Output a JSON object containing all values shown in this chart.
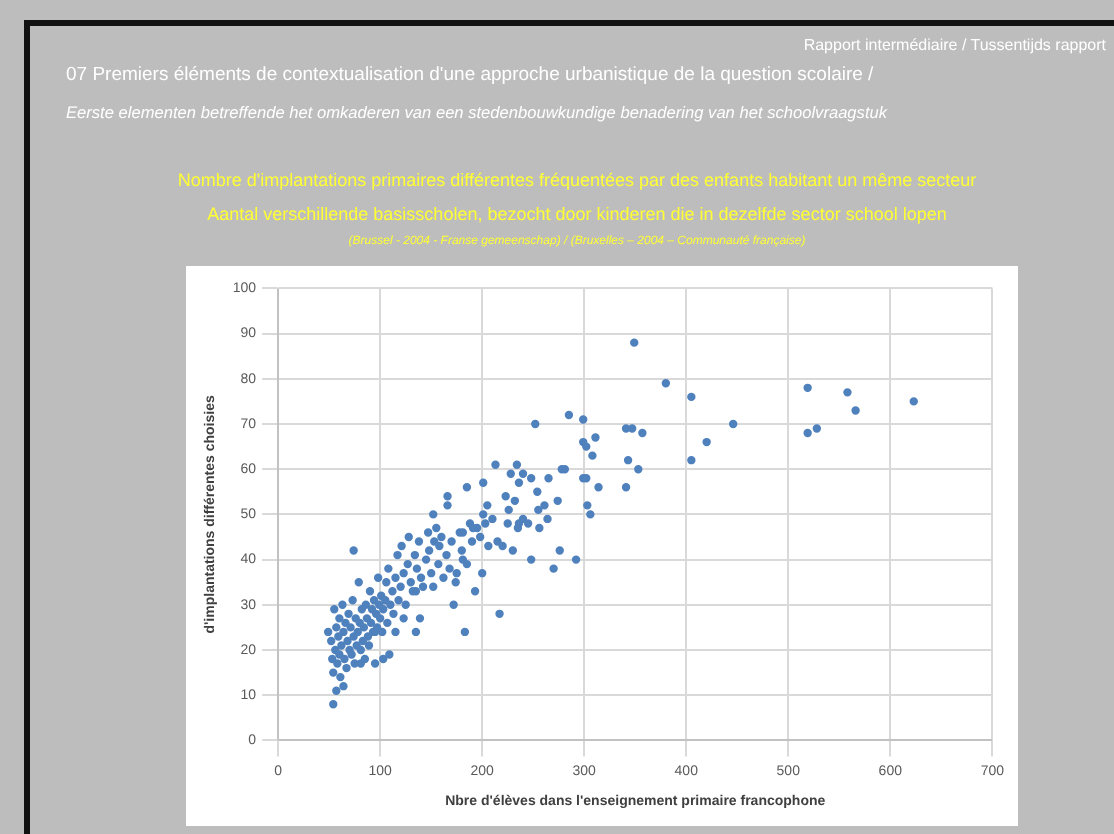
{
  "chart_data": {
    "type": "scatter",
    "title": "Nombre d'implantations primaires différentes fréquentées par des enfants  habitant un même secteur",
    "subtitle": "Aantal verschillende basisscholen, bezocht door kinderen die in dezelfde sector school lopen",
    "annotations": [
      "Rapport intermédiaire / Tussentijds rapport",
      "07  Premiers éléments de contextualisation d'une approche urbanistique de la question scolaire /",
      "Eerste elementen betreffende het omkaderen van een stedenbouwkundige benadering van het schoolvraagstuk",
      "(Brussel - 2004 - Franse gemeenschap) / (Bruxelles – 2004 – Communauté française)"
    ],
    "xlabel": "Nbre d'élèves dans l'enseignement primaire francophone",
    "ylabel": "d'implantations différentes choisies",
    "xlim": [
      0,
      700
    ],
    "xticks": [
      0,
      100,
      200,
      300,
      400,
      500,
      600,
      700
    ],
    "ylim": [
      0,
      100
    ],
    "yticks": [
      0,
      10,
      20,
      30,
      40,
      50,
      60,
      70,
      80,
      90,
      100
    ],
    "grid": true,
    "marker": "circle",
    "series": [
      {
        "color": "#4f81bd",
        "x": [
          349,
          380,
          405,
          519,
          558,
          623,
          566,
          519,
          528,
          446,
          420,
          405,
          341,
          347,
          357,
          299,
          285,
          252,
          299,
          302,
          311,
          308,
          343,
          353,
          341,
          314,
          299,
          302,
          303,
          306,
          278,
          281,
          265,
          274,
          261,
          254,
          248,
          240,
          234,
          213,
          228,
          236,
          201,
          185,
          166,
          166,
          152,
          223,
          232,
          205,
          226,
          255,
          264,
          236,
          201,
          181,
          191,
          54,
          74,
          292,
          217,
          183,
          270,
          276,
          256,
          248,
          230,
          206,
          220,
          200,
          193,
          172,
          175,
          181,
          152,
          135,
          139,
          123,
          135,
          115,
          103,
          109,
          95,
          81,
          64,
          57,
          49,
          52,
          53,
          54,
          55,
          56,
          57,
          58,
          59,
          60,
          60,
          61,
          62,
          63,
          64,
          65,
          66,
          67,
          68,
          69,
          70,
          71,
          72,
          73,
          74,
          75,
          76,
          77,
          78,
          79,
          80,
          81,
          82,
          83,
          84,
          85,
          86,
          87,
          88,
          89,
          90,
          91,
          92,
          93,
          94,
          95,
          96,
          97,
          98,
          99,
          100,
          101,
          102,
          103,
          105,
          106,
          107,
          108,
          110,
          112,
          113,
          115,
          117,
          118,
          120,
          121,
          123,
          125,
          127,
          128,
          130,
          132,
          134,
          136,
          138,
          140,
          142,
          145,
          147,
          148,
          150,
          153,
          155,
          157,
          158,
          160,
          162,
          165,
          168,
          170,
          174,
          178,
          180,
          185,
          188,
          190,
          195,
          198,
          203,
          210,
          215,
          225,
          235,
          240,
          245
        ],
        "values": [
          88,
          79,
          76,
          78,
          77,
          75,
          73,
          68,
          69,
          70,
          66,
          62,
          69,
          69,
          68,
          71,
          72,
          70,
          66,
          65,
          67,
          63,
          62,
          60,
          56,
          56,
          58,
          58,
          52,
          50,
          60,
          60,
          58,
          53,
          52,
          55,
          58,
          59,
          61,
          61,
          59,
          57,
          57,
          56,
          54,
          52,
          50,
          54,
          53,
          52,
          51,
          51,
          49,
          48,
          50,
          46,
          47,
          8,
          42,
          40,
          28,
          24,
          38,
          42,
          47,
          40,
          42,
          43,
          43,
          37,
          33,
          30,
          37,
          40,
          34,
          33,
          27,
          27,
          24,
          24,
          18,
          19,
          24,
          17,
          12,
          11,
          24,
          22,
          18,
          15,
          29,
          20,
          25,
          17,
          23,
          19,
          27,
          14,
          21,
          30,
          24,
          18,
          26,
          16,
          22,
          28,
          20,
          25,
          19,
          31,
          23,
          17,
          27,
          21,
          24,
          35,
          26,
          20,
          29,
          22,
          25,
          18,
          30,
          27,
          23,
          21,
          33,
          26,
          29,
          24,
          31,
          17,
          28,
          25,
          36,
          30,
          27,
          32,
          24,
          29,
          31,
          35,
          26,
          38,
          30,
          33,
          28,
          36,
          41,
          31,
          34,
          43,
          37,
          30,
          39,
          45,
          35,
          33,
          41,
          38,
          44,
          36,
          34,
          40,
          46,
          42,
          37,
          44,
          47,
          39,
          43,
          45,
          36,
          41,
          38,
          44,
          35,
          46,
          42,
          39,
          48,
          44,
          47,
          45,
          48,
          49,
          44,
          48,
          47,
          49,
          48
        ]
      }
    ]
  }
}
